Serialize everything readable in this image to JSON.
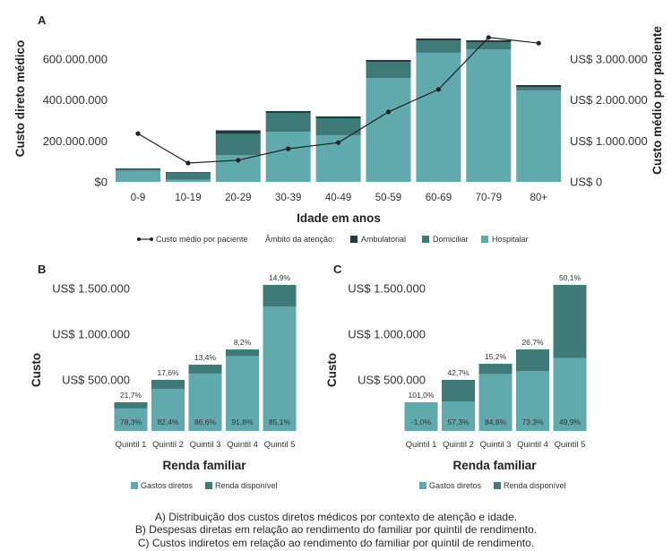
{
  "colors": {
    "light_teal": "#60aaae",
    "mid_teal": "#407a78",
    "dark_teal": "#1e3a3a",
    "line": "#222222",
    "text": "#333333"
  },
  "caption": {
    "line_a": "A) Distribuição dos custos diretos médicos por contexto de atenção e idade.",
    "line_b": "B) Despesas diretas em relação ao rendimento do familiar por quintil de rendimento.",
    "line_c": "C) Custos indiretos em relação ao rendimento do familiar por quintil de rendimento."
  },
  "chart_data": [
    {
      "panel": "A",
      "type": "bar",
      "stacked": true,
      "xlabel": "Idade em anos",
      "ylabel": "Custo direto médico",
      "ylabel_right": "Custo médio por paciente",
      "categories": [
        "0-9",
        "10-19",
        "20-29",
        "30-39",
        "40-49",
        "50-59",
        "60-69",
        "70-79",
        "80+"
      ],
      "ylim": [
        0,
        750000000
      ],
      "ylim_right": [
        0,
        3750000
      ],
      "yticks": [
        {
          "value": 0,
          "label": "$0"
        },
        {
          "value": 200000000,
          "label": "200.000.000"
        },
        {
          "value": 400000000,
          "label": "400.000.000"
        },
        {
          "value": 600000000,
          "label": "600.000.000"
        }
      ],
      "yticks_right": [
        {
          "value": 0,
          "label": "US$ 0"
        },
        {
          "value": 1000000,
          "label": "US$ 1.000.000"
        },
        {
          "value": 2000000,
          "label": "US$ 2.000.000"
        },
        {
          "value": 3000000,
          "label": "US$ 3.000.000"
        }
      ],
      "grid": false,
      "legend_position": "bottom",
      "legend_title": "Âmbito da atenção:",
      "series": [
        {
          "name": "Hospitalar",
          "color": "#60aaae",
          "values": [
            54000000,
            10000000,
            130000000,
            245000000,
            228000000,
            508000000,
            631000000,
            648000000,
            447000000
          ]
        },
        {
          "name": "Domiciliar",
          "color": "#407a78",
          "values": [
            8000000,
            35000000,
            105000000,
            92000000,
            83000000,
            79000000,
            61000000,
            35000000,
            17000000
          ]
        },
        {
          "name": "Ambulatorial",
          "color": "#1e3a3a",
          "values": [
            4000000,
            3000000,
            17000000,
            9000000,
            9000000,
            9000000,
            9000000,
            9000000,
            9000000
          ]
        }
      ],
      "line_series": {
        "name": "Custo médio por paciente",
        "type": "line",
        "color": "#222222",
        "values": [
          1180000,
          460000,
          530000,
          810000,
          960000,
          1710000,
          2260000,
          3530000,
          3390000
        ]
      }
    },
    {
      "panel": "B",
      "type": "bar",
      "stacked": true,
      "xlabel": "Renda familiar",
      "ylabel": "Custo",
      "categories": [
        "Quintil 1",
        "Quintil 2",
        "Quintil 3",
        "Quintil 4",
        "Quintil 5"
      ],
      "ylim": [
        0,
        1700000
      ],
      "yticks": [
        {
          "value": 500000,
          "label": "US$ 500.000"
        },
        {
          "value": 1000000,
          "label": "US$ 1.000.000"
        },
        {
          "value": 1500000,
          "label": "US$ 1.500.000"
        }
      ],
      "grid": false,
      "legend_position": "bottom",
      "series": [
        {
          "name": "Gastos diretos",
          "color": "#60aaae",
          "values": [
            246000,
            461000,
            628000,
            819000,
            1360000
          ],
          "data_labels": [
            "78,3%",
            "82,4%",
            "86,6%",
            "91,8%",
            "85,1%"
          ]
        },
        {
          "name": "Renda disponível",
          "color": "#407a78",
          "values": [
            68000,
            98000,
            97000,
            73000,
            238000
          ],
          "data_labels": [
            "21,7%",
            "17,6%",
            "13,4%",
            "8,2%",
            "14,9%"
          ]
        }
      ]
    },
    {
      "panel": "C",
      "type": "bar",
      "stacked": true,
      "xlabel": "Renda familiar",
      "ylabel": "Custo",
      "categories": [
        "Quintil 1",
        "Quintil 2",
        "Quintil 3",
        "Quintil 4",
        "Quintil 5"
      ],
      "ylim": [
        0,
        1700000
      ],
      "yticks": [
        {
          "value": 500000,
          "label": "US$ 500.000"
        },
        {
          "value": 1000000,
          "label": "US$ 1.000.000"
        },
        {
          "value": 1500000,
          "label": "US$ 1.500.000"
        }
      ],
      "grid": false,
      "legend_position": "bottom",
      "series": [
        {
          "name": "Gastos diretos",
          "color": "#60aaae",
          "values": [
            314000,
            320000,
            623000,
            654000,
            797000
          ],
          "data_labels": [
            "-1,0%",
            "57,3%",
            "84,8%",
            "73,3%",
            "49,9%"
          ]
        },
        {
          "name": "Renda disponível",
          "color": "#407a78",
          "values": [
            0,
            239000,
            112000,
            238000,
            801000
          ],
          "data_labels": [
            "101,0%",
            "42,7%",
            "15,2%",
            "26,7%",
            "50,1%"
          ]
        }
      ]
    }
  ]
}
